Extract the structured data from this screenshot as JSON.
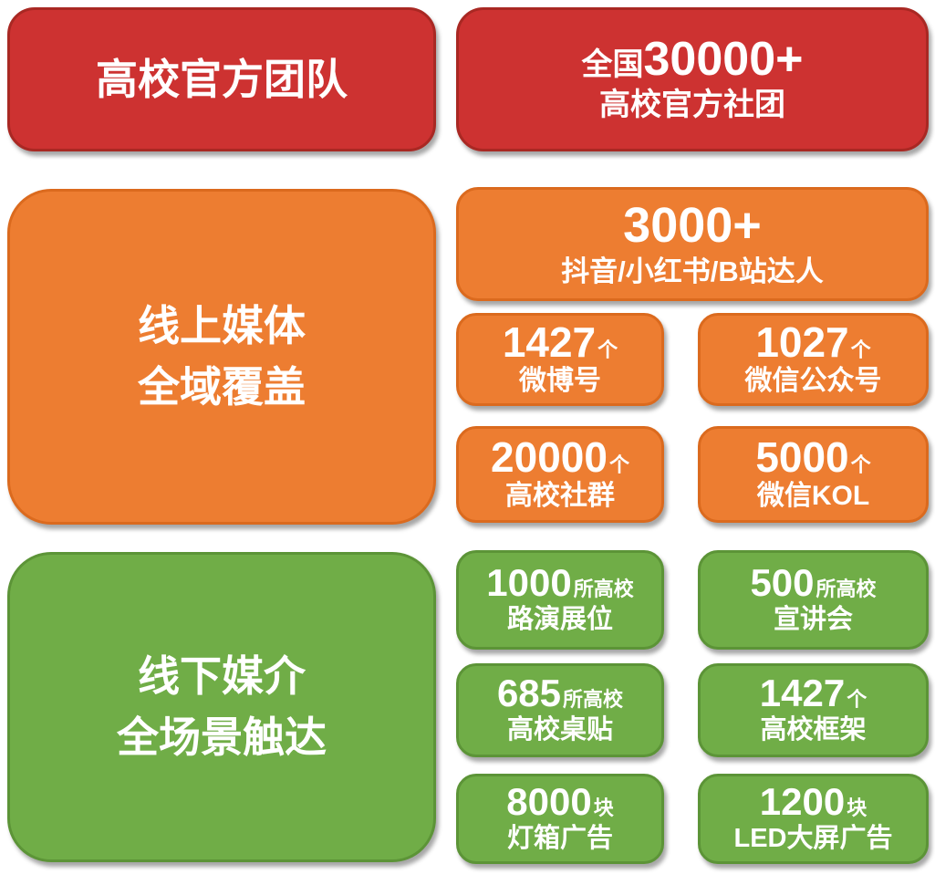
{
  "palette": {
    "red": "#CD3231",
    "red_border": "#A92823",
    "orange": "#ED7D31",
    "orange_border": "#DB6A1E",
    "green": "#70AD47",
    "green_border": "#5C9437",
    "text": "#FFFFFF",
    "background": "#FFFFFF"
  },
  "team": {
    "title": "高校官方团队",
    "stat": {
      "prefix": "全国",
      "number": "30000+",
      "label": "高校官方社团"
    }
  },
  "online": {
    "title_line1": "线上媒体",
    "title_line2": "全域覆盖",
    "feature": {
      "number": "3000+",
      "label": "抖音/小红书/B站达人"
    },
    "stats": [
      {
        "number": "1427",
        "unit": "个",
        "label": "微博号"
      },
      {
        "number": "1027",
        "unit": "个",
        "label": "微信公众号"
      },
      {
        "number": "20000",
        "unit": "个",
        "label": "高校社群"
      },
      {
        "number": "5000",
        "unit": "个",
        "label": "微信KOL"
      }
    ]
  },
  "offline": {
    "title_line1": "线下媒介",
    "title_line2": "全场景触达",
    "stats": [
      {
        "number": "1000",
        "unit": "所高校",
        "label": "路演展位"
      },
      {
        "number": "500",
        "unit": "所高校",
        "label": "宣讲会"
      },
      {
        "number": "685",
        "unit": "所高校",
        "label": "高校桌贴"
      },
      {
        "number": "1427",
        "unit": "个",
        "label": "高校框架"
      },
      {
        "number": "8000",
        "unit": "块",
        "label": "灯箱广告"
      },
      {
        "number": "1200",
        "unit": "块",
        "label": "LED大屏广告"
      }
    ]
  }
}
